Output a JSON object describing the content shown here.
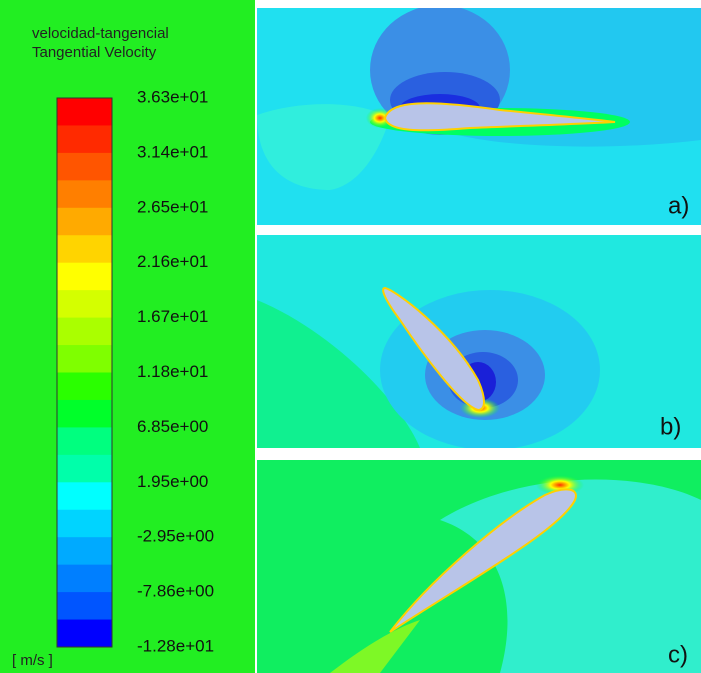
{
  "legend": {
    "title_es": "velocidad-tangencial",
    "title_en": "Tangential Velocity",
    "ticks": [
      "3.63e+01",
      "3.14e+01",
      "2.65e+01",
      "2.16e+01",
      "1.67e+01",
      "1.18e+01",
      "6.85e+00",
      "1.95e+00",
      "-2.95e+00",
      "-7.86e+00",
      "-1.28e+01"
    ],
    "unit": "[ m/s ]"
  },
  "panels": [
    {
      "label": "a)"
    },
    {
      "label": "b)"
    },
    {
      "label": "c)"
    }
  ]
}
